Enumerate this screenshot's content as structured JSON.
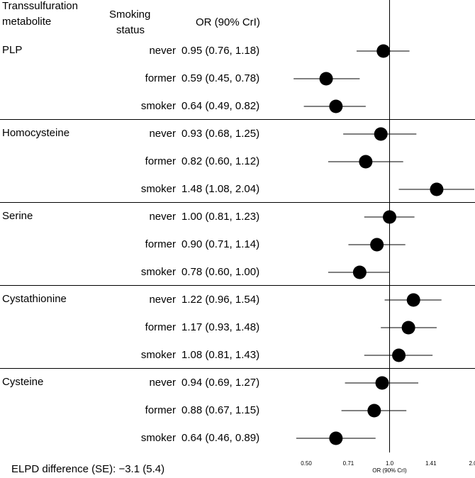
{
  "header": {
    "metabolite_l1": "Transsulfuration",
    "metabolite_l2": "metabolite",
    "status_l1": "Smoking",
    "status_l2": "status",
    "or": "OR (90% CrI)"
  },
  "footer": {
    "text": "ELPD difference (SE): −3.1 (5.4)"
  },
  "chart_data": {
    "type": "scatter",
    "title": "",
    "xlabel": "OR (90% CrI)",
    "ylabel": "",
    "xscale": "log",
    "xlim": [
      0.5,
      2.0
    ],
    "xticks": [
      0.5,
      0.71,
      1.0,
      1.41,
      2.0
    ],
    "xtick_labels": [
      "0.50",
      "0.71",
      "1.0",
      "1.41",
      "2.0"
    ],
    "reference_line": 1.0,
    "groups": [
      {
        "metabolite": "PLP",
        "rows": [
          {
            "status": "never",
            "or": 0.95,
            "lo": 0.76,
            "hi": 1.18,
            "label": "0.95 (0.76, 1.18)"
          },
          {
            "status": "former",
            "or": 0.59,
            "lo": 0.45,
            "hi": 0.78,
            "label": "0.59 (0.45, 0.78)"
          },
          {
            "status": "smoker",
            "or": 0.64,
            "lo": 0.49,
            "hi": 0.82,
            "label": "0.64 (0.49, 0.82)"
          }
        ]
      },
      {
        "metabolite": "Homocysteine",
        "rows": [
          {
            "status": "never",
            "or": 0.93,
            "lo": 0.68,
            "hi": 1.25,
            "label": "0.93 (0.68, 1.25)"
          },
          {
            "status": "former",
            "or": 0.82,
            "lo": 0.6,
            "hi": 1.12,
            "label": "0.82 (0.60, 1.12)"
          },
          {
            "status": "smoker",
            "or": 1.48,
            "lo": 1.08,
            "hi": 2.04,
            "label": "1.48 (1.08, 2.04)"
          }
        ]
      },
      {
        "metabolite": "Serine",
        "rows": [
          {
            "status": "never",
            "or": 1.0,
            "lo": 0.81,
            "hi": 1.23,
            "label": "1.00 (0.81, 1.23)"
          },
          {
            "status": "former",
            "or": 0.9,
            "lo": 0.71,
            "hi": 1.14,
            "label": "0.90 (0.71, 1.14)"
          },
          {
            "status": "smoker",
            "or": 0.78,
            "lo": 0.6,
            "hi": 1.0,
            "label": "0.78 (0.60, 1.00)"
          }
        ]
      },
      {
        "metabolite": "Cystathionine",
        "rows": [
          {
            "status": "never",
            "or": 1.22,
            "lo": 0.96,
            "hi": 1.54,
            "label": "1.22 (0.96, 1.54)"
          },
          {
            "status": "former",
            "or": 1.17,
            "lo": 0.93,
            "hi": 1.48,
            "label": "1.17 (0.93, 1.48)"
          },
          {
            "status": "smoker",
            "or": 1.08,
            "lo": 0.81,
            "hi": 1.43,
            "label": "1.08 (0.81, 1.43)"
          }
        ]
      },
      {
        "metabolite": "Cysteine",
        "rows": [
          {
            "status": "never",
            "or": 0.94,
            "lo": 0.69,
            "hi": 1.27,
            "label": "0.94 (0.69, 1.27)"
          },
          {
            "status": "former",
            "or": 0.88,
            "lo": 0.67,
            "hi": 1.15,
            "label": "0.88 (0.67, 1.15)"
          },
          {
            "status": "smoker",
            "or": 0.64,
            "lo": 0.46,
            "hi": 0.89,
            "label": "0.64 (0.46, 0.89)"
          }
        ]
      }
    ]
  }
}
